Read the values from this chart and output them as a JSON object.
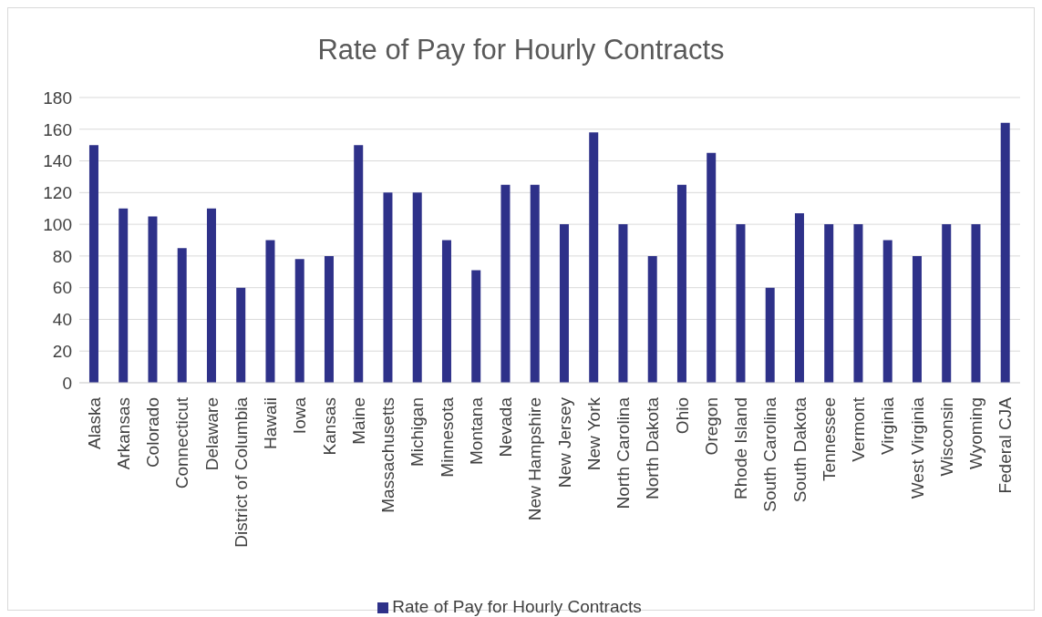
{
  "chart_data": {
    "type": "bar",
    "title": "Rate of Pay for Hourly Contracts",
    "categories": [
      "Alaska",
      "Arkansas",
      "Colorado",
      "Connecticut",
      "Delaware",
      "District of Columbia",
      "Hawaii",
      "Iowa",
      "Kansas",
      "Maine",
      "Massachusetts",
      "Michigan",
      "Minnesota",
      "Montana",
      "Nevada",
      "New Hampshire",
      "New Jersey",
      "New York",
      "North Carolina",
      "North Dakota",
      "Ohio",
      "Oregon",
      "Rhode Island",
      "South Carolina",
      "South Dakota",
      "Tennessee",
      "Vermont",
      "Virginia",
      "West Virginia",
      "Wisconsin",
      "Wyoming",
      "Federal CJA"
    ],
    "series": [
      {
        "name": "Rate of Pay for Hourly Contracts",
        "color": "#2e3189",
        "values": [
          150,
          110,
          105,
          85,
          110,
          60,
          90,
          78,
          80,
          150,
          120,
          120,
          90,
          71,
          125,
          125,
          100,
          158,
          100,
          80,
          125,
          145,
          100,
          60,
          107,
          100,
          100,
          90,
          80,
          100,
          100,
          164
        ]
      }
    ],
    "ylim": [
      0,
      180
    ],
    "yticks": [
      0,
      20,
      40,
      60,
      80,
      100,
      120,
      140,
      160,
      180
    ],
    "grid": "y",
    "legend": "bottom"
  }
}
